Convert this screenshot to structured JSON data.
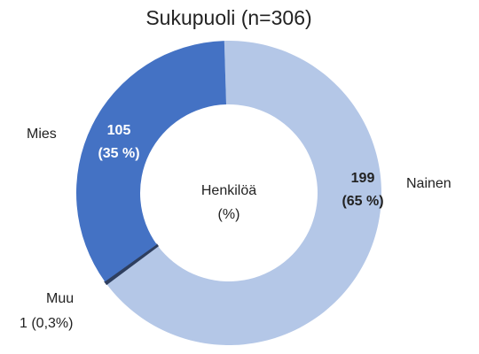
{
  "chart_data": {
    "type": "donut",
    "title": "Sukupuoli (n=306)",
    "center_label": [
      "Henkilöä",
      "(%)"
    ],
    "categories": [
      "Nainen",
      "Muu",
      "Mies"
    ],
    "values": [
      199,
      1,
      105
    ],
    "value_labels": [
      [
        "199",
        "(65 %)"
      ],
      [
        "1 (0,3%)"
      ],
      [
        "105",
        "(35 %)"
      ]
    ],
    "colors": [
      "#b4c7e7",
      "#2f3f5f",
      "#4472c4"
    ]
  }
}
